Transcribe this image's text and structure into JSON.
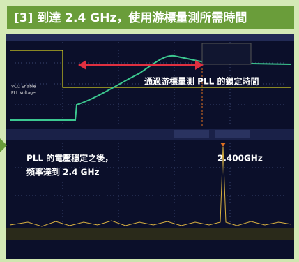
{
  "header": {
    "title": "[3] 到達 2.4 GHz，使用游標量測所需時間"
  },
  "scope": {
    "channel_labels": [
      "VCO Enable",
      "PLL Voltage"
    ]
  },
  "annotations": {
    "lock_time": "通過游標量測 PLL 的鎖定時間",
    "settle_line1": "PLL 的電壓穩定之後，",
    "settle_line2": "頻率達到 2.4 GHz",
    "peak_marker": "2.400GHz"
  }
}
